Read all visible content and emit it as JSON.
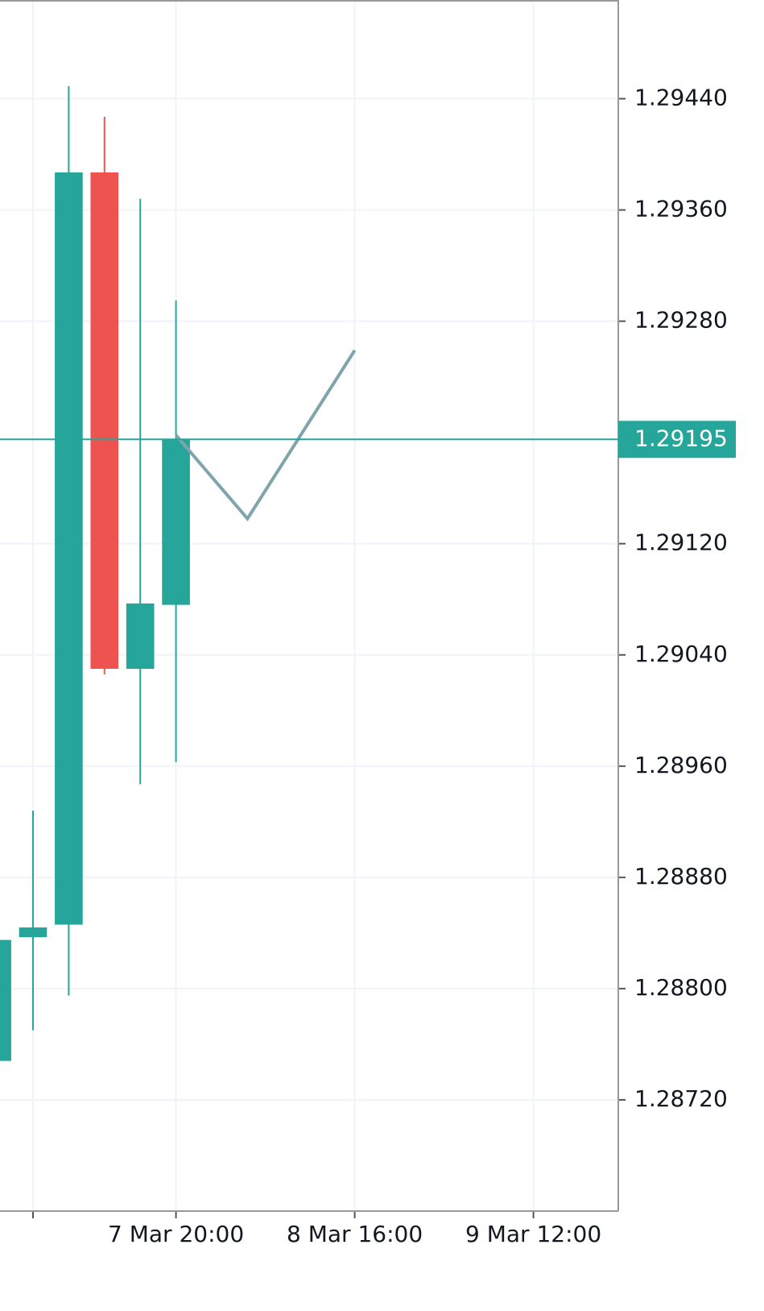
{
  "chart_data": {
    "type": "candlestick",
    "x": [
      -1,
      0,
      1,
      2,
      3,
      4
    ],
    "open": [
      1.28748,
      1.28837,
      1.28846,
      1.29387,
      1.2903,
      1.29076
    ],
    "high": [
      1.28835,
      1.28928,
      1.29449,
      1.29427,
      1.29368,
      1.29295
    ],
    "low": [
      1.28748,
      1.2877,
      1.28795,
      1.29026,
      1.28947,
      1.28963
    ],
    "close": [
      1.28835,
      1.28844,
      1.29387,
      1.2903,
      1.29077,
      1.29195
    ],
    "up_color": "#26a69a",
    "down_color": "#ef5350",
    "overlay": {
      "x": [
        4,
        6,
        9
      ],
      "values": [
        1.29198,
        1.29138,
        1.29259
      ],
      "color": "#7fa4ac"
    },
    "last_price": 1.29195,
    "last_price_color": "#26a69a",
    "xlim": [
      -0.923,
      16.374
    ],
    "xticks": [
      {
        "value": 0,
        "label": null
      },
      {
        "value": 4,
        "label": "7 Mar 20:00"
      },
      {
        "value": 9,
        "label": "8 Mar 16:00"
      },
      {
        "value": 14,
        "label": "9 Mar 12:00"
      }
    ],
    "ylim": [
      1.2864,
      1.29511
    ],
    "yticks": [
      {
        "value": 1.2872,
        "label": "1.28720"
      },
      {
        "value": 1.288,
        "label": "1.28800"
      },
      {
        "value": 1.2888,
        "label": "1.28880"
      },
      {
        "value": 1.2896,
        "label": "1.28960"
      },
      {
        "value": 1.2904,
        "label": "1.29040"
      },
      {
        "value": 1.2912,
        "label": "1.29120"
      },
      {
        "value": 1.2928,
        "label": "1.29280"
      },
      {
        "value": 1.2936,
        "label": "1.29360"
      },
      {
        "value": 1.2944,
        "label": "1.29440"
      }
    ],
    "grid": true
  }
}
